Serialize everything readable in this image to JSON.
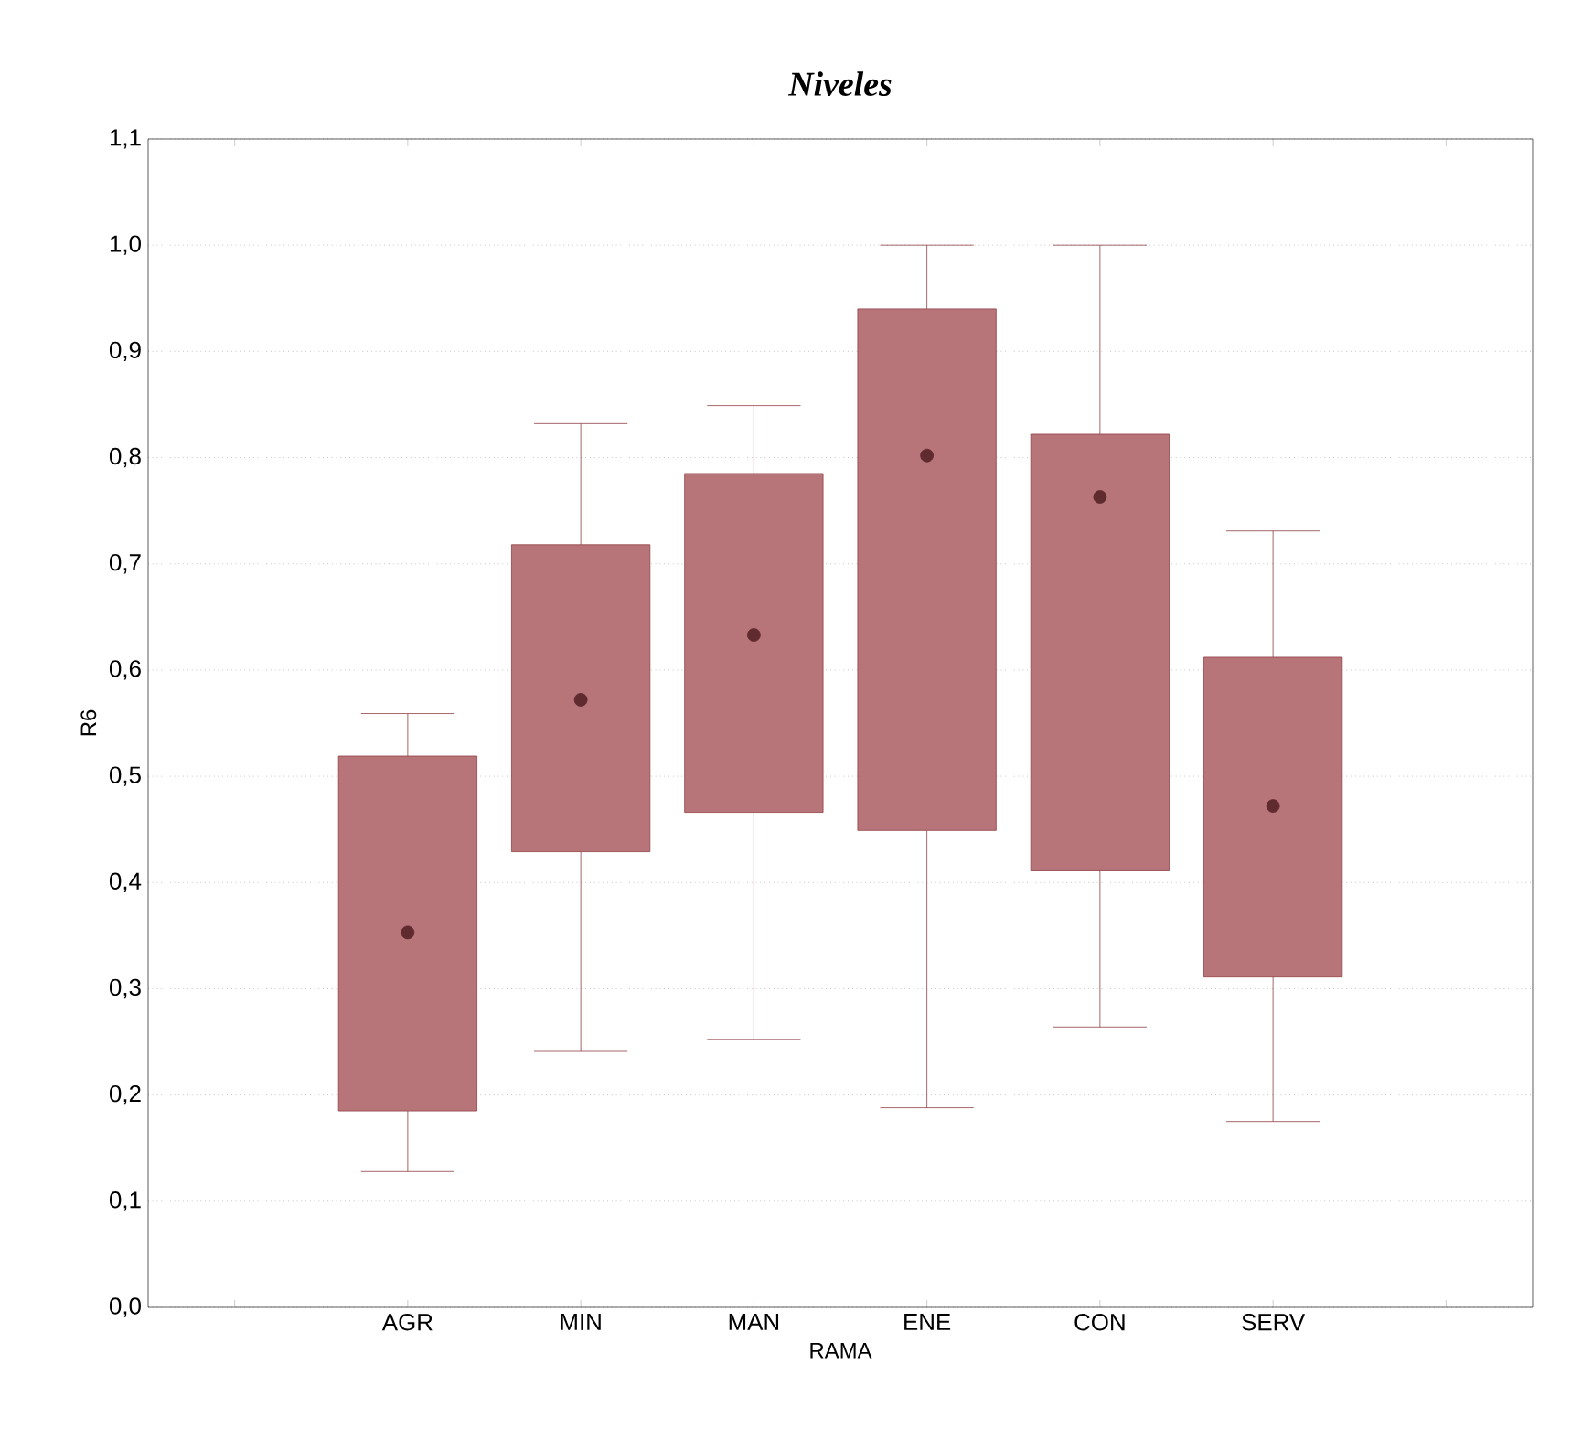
{
  "chart_data": {
    "type": "box",
    "title": "**Niveles**",
    "xlabel": "RAMA",
    "ylabel": "R6",
    "categories": [
      "AGR",
      "MIN",
      "MAN",
      "ENE",
      "CON",
      "SERV"
    ],
    "color": "#a0474c",
    "boxes": [
      {
        "low": 0.128,
        "q1": 0.185,
        "median": 0.353,
        "q3": 0.519,
        "high": 0.559
      },
      {
        "low": 0.241,
        "q1": 0.429,
        "median": 0.572,
        "q3": 0.718,
        "high": 0.832
      },
      {
        "low": 0.252,
        "q1": 0.466,
        "median": 0.633,
        "q3": 0.785,
        "high": 0.849
      },
      {
        "low": 0.188,
        "q1": 0.449,
        "median": 0.802,
        "q3": 0.94,
        "high": 1.0
      },
      {
        "low": 0.264,
        "q1": 0.411,
        "median": 0.763,
        "q3": 0.822,
        "high": 1.0
      },
      {
        "low": 0.175,
        "q1": 0.311,
        "median": 0.472,
        "q3": 0.612,
        "high": 0.731
      }
    ],
    "ylim": [
      0,
      1.1
    ],
    "yticks": [
      {
        "value": 0,
        "label": "0,0"
      },
      {
        "value": 0.1,
        "label": "0,1"
      },
      {
        "value": 0.2,
        "label": "0,2"
      },
      {
        "value": 0.3,
        "label": "0,3"
      },
      {
        "value": 0.4,
        "label": "0,4"
      },
      {
        "value": 0.5,
        "label": "0,5"
      },
      {
        "value": 0.6,
        "label": "0,6"
      },
      {
        "value": 0.7,
        "label": "0,7"
      },
      {
        "value": 0.8,
        "label": "0,8"
      },
      {
        "value": 0.9,
        "label": "0,9"
      },
      {
        "value": 1.0,
        "label": "1,0"
      },
      {
        "value": 1.1,
        "label": "1,1"
      }
    ],
    "grid": "y",
    "marker": "circle"
  }
}
